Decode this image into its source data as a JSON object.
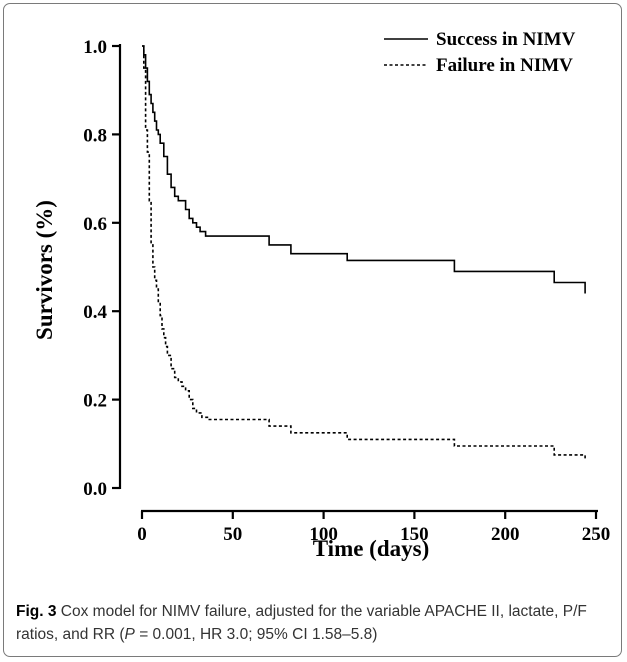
{
  "chart_data": {
    "type": "line",
    "xlabel": "Time (days)",
    "ylabel": "Survivors (%)",
    "xlim": [
      0,
      250
    ],
    "ylim": [
      0.0,
      1.0
    ],
    "xticks": [
      0,
      50,
      100,
      150,
      200,
      250
    ],
    "xtick_labels": [
      "0",
      "50",
      "100",
      "150",
      "200",
      "250"
    ],
    "yticks": [
      0.0,
      0.2,
      0.4,
      0.6,
      0.8,
      1.0
    ],
    "ytick_labels": [
      "0.0",
      "0.2",
      "0.4",
      "0.6",
      "0.8",
      "1.0"
    ],
    "legend_position": "top-right",
    "grid": false,
    "series": [
      {
        "name": "Success in NIMV",
        "style": "solid",
        "x": [
          0,
          1,
          2,
          3,
          4,
          5,
          6,
          7,
          8,
          9,
          10,
          12,
          14,
          16,
          18,
          20,
          24,
          26,
          28,
          30,
          32,
          35,
          70,
          82,
          113,
          172,
          227,
          243,
          244
        ],
        "y": [
          1.0,
          0.98,
          0.95,
          0.92,
          0.89,
          0.87,
          0.85,
          0.83,
          0.81,
          0.8,
          0.78,
          0.75,
          0.71,
          0.68,
          0.66,
          0.65,
          0.63,
          0.61,
          0.6,
          0.59,
          0.58,
          0.57,
          0.55,
          0.53,
          0.515,
          0.49,
          0.465,
          0.465,
          0.44
        ]
      },
      {
        "name": "Failure in NIMV",
        "style": "dashed",
        "x": [
          0,
          1,
          2,
          3,
          4,
          5,
          6,
          7,
          8,
          9,
          10,
          11,
          12,
          13,
          14,
          16,
          18,
          20,
          22,
          24,
          26,
          28,
          30,
          33,
          36,
          70,
          82,
          113,
          172,
          227,
          243,
          244
        ],
        "y": [
          1.0,
          0.95,
          0.81,
          0.76,
          0.65,
          0.55,
          0.5,
          0.47,
          0.45,
          0.42,
          0.39,
          0.36,
          0.34,
          0.32,
          0.3,
          0.27,
          0.25,
          0.24,
          0.23,
          0.22,
          0.2,
          0.18,
          0.17,
          0.16,
          0.155,
          0.14,
          0.125,
          0.11,
          0.095,
          0.075,
          0.075,
          0.065
        ]
      }
    ]
  },
  "caption": {
    "label": "Fig. 3",
    "text": "Cox model for NIMV failure, adjusted for the variable APACHE II, lactate, P/F ratios, and RR (",
    "p_symbol": "P",
    "text_tail": " = 0.001, HR 3.0; 95% CI 1.58–5.8)"
  }
}
